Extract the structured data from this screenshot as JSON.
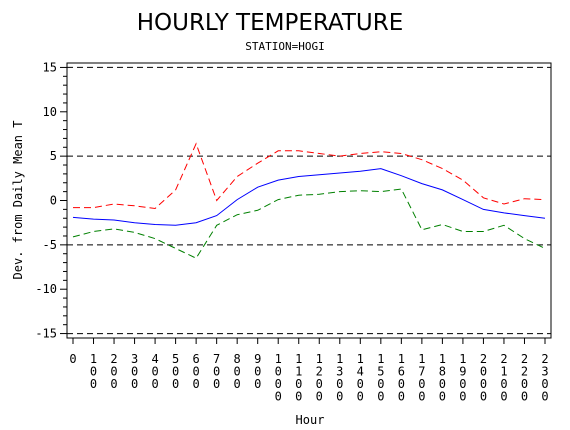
{
  "chart_data": {
    "type": "line",
    "title": "HOURLY TEMPERATURE",
    "subtitle": "STATION=HOGI",
    "xlabel": "Hour",
    "ylabel": "Dev. from Daily Mean T",
    "x": [
      "0",
      "100",
      "200",
      "300",
      "400",
      "500",
      "600",
      "700",
      "800",
      "900",
      "1000",
      "1100",
      "1200",
      "1300",
      "1400",
      "1500",
      "1600",
      "1700",
      "1800",
      "1900",
      "2000",
      "2100",
      "2200",
      "2300"
    ],
    "ylim": [
      -15.5,
      15.5
    ],
    "yticks": [
      -15,
      -10,
      -5,
      0,
      5,
      10,
      15
    ],
    "reference_lines": [
      -15,
      -5,
      5,
      15
    ],
    "grid": false,
    "series": [
      {
        "color": "#ff0000",
        "style": "dashed",
        "values": [
          -0.8,
          -0.8,
          -0.4,
          -0.6,
          -0.9,
          1.2,
          6.4,
          0.0,
          2.7,
          4.2,
          5.6,
          5.6,
          5.3,
          5.0,
          5.3,
          5.5,
          5.3,
          4.6,
          3.6,
          2.3,
          0.3,
          -0.4,
          0.2,
          0.1
        ]
      },
      {
        "color": "#0000ff",
        "style": "solid",
        "values": [
          -1.9,
          -2.1,
          -2.2,
          -2.5,
          -2.7,
          -2.8,
          -2.5,
          -1.7,
          0.1,
          1.5,
          2.3,
          2.7,
          2.9,
          3.1,
          3.3,
          3.6,
          2.8,
          1.9,
          1.2,
          0.1,
          -1.0,
          -1.4,
          -1.7,
          -2.0
        ]
      },
      {
        "color": "#008000",
        "style": "dashed",
        "values": [
          -4.1,
          -3.5,
          -3.2,
          -3.6,
          -4.3,
          -5.4,
          -6.5,
          -2.8,
          -1.6,
          -1.1,
          0.1,
          0.6,
          0.7,
          1.0,
          1.1,
          1.0,
          1.3,
          -3.3,
          -2.7,
          -3.5,
          -3.5,
          -2.8,
          -4.3,
          -5.4
        ]
      }
    ]
  }
}
